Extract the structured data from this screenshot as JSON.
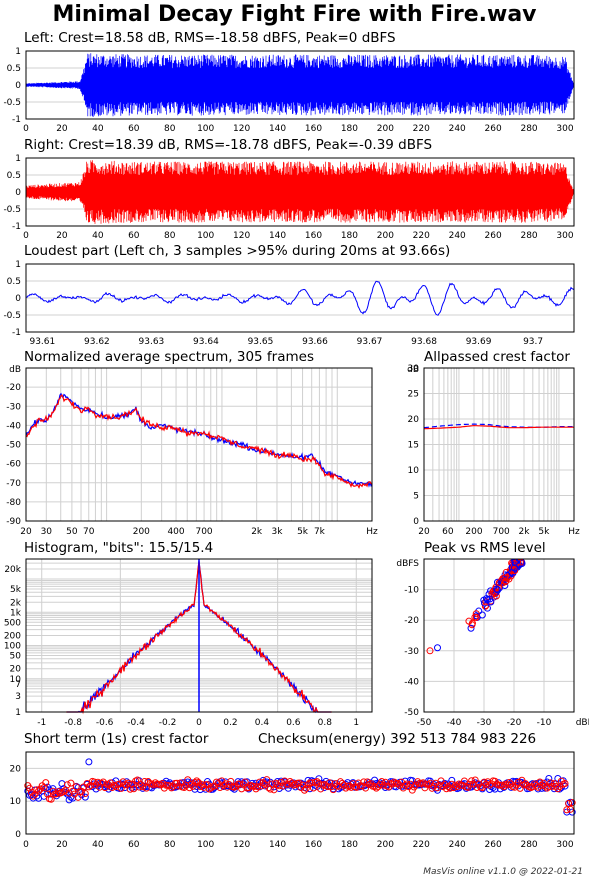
{
  "page": {
    "title": "Minimal Decay Fight Fire with Fire.wav",
    "footer": "MasVis online v1.1.0 @ 2022-01-21"
  },
  "colors": {
    "left": "#0000ff",
    "right": "#ff0000",
    "grid": "#d0d0d0"
  },
  "chart_data": [
    {
      "id": "left-waveform",
      "type": "area",
      "title": "Left: Crest=18.58 dB, RMS=-18.58 dBFS, Peak=0 dBFS",
      "x_ticks": [
        "0",
        "20",
        "40",
        "60",
        "80",
        "100",
        "120",
        "140",
        "160",
        "180",
        "200",
        "220",
        "240",
        "260",
        "280",
        "300"
      ],
      "y_ticks": [
        "1",
        "0.5",
        "0",
        "-0.5",
        "-1"
      ],
      "xlim": [
        0,
        305
      ],
      "ylim": [
        -1,
        1
      ],
      "envelope": {
        "x": [
          0,
          30,
          33,
          34,
          60,
          150,
          250,
          280,
          300,
          305
        ],
        "amplitude": [
          0.05,
          0.12,
          0.7,
          0.95,
          0.9,
          0.9,
          0.9,
          0.9,
          0.85,
          0.02
        ]
      }
    },
    {
      "id": "right-waveform",
      "type": "area",
      "title": "Right: Crest=18.39 dB, RMS=-18.78 dBFS, Peak=-0.39 dBFS",
      "x_ticks": [
        "0",
        "20",
        "40",
        "60",
        "80",
        "100",
        "120",
        "140",
        "160",
        "180",
        "200",
        "220",
        "240",
        "260",
        "280",
        "300"
      ],
      "y_ticks": [
        "1",
        "0.5",
        "0",
        "-0.5",
        "-1"
      ],
      "xlim": [
        0,
        305
      ],
      "ylim": [
        -1,
        1
      ],
      "envelope": {
        "x": [
          0,
          30,
          33,
          34,
          60,
          150,
          250,
          280,
          300,
          305
        ],
        "amplitude": [
          0.2,
          0.3,
          0.75,
          0.95,
          0.9,
          0.9,
          0.9,
          0.9,
          0.85,
          0.02
        ]
      }
    },
    {
      "id": "loudest-part",
      "type": "line",
      "title": "Loudest part (Left ch, 3 samples >95% during 20ms at 93.66s)",
      "x_ticks": [
        "93.61",
        "93.62",
        "93.63",
        "93.64",
        "93.65",
        "93.66",
        "93.67",
        "93.68",
        "93.69",
        "93.7"
      ],
      "y_ticks": [
        "1",
        "0.5",
        "0",
        "-0.5",
        "-1"
      ],
      "xlim": [
        93.607,
        93.7075
      ],
      "ylim": [
        -1,
        1
      ]
    },
    {
      "id": "avg-spectrum",
      "type": "line",
      "title": "Normalized average spectrum, 305 frames",
      "ylabel": "dB",
      "x_ticks": [
        "20",
        "30",
        "50",
        "70",
        "200",
        "400",
        "700",
        "2k",
        "3k",
        "5k",
        "7k",
        "Hz"
      ],
      "x_tick_values": [
        20,
        30,
        50,
        70,
        200,
        400,
        700,
        2000,
        3000,
        5000,
        7000
      ],
      "y_ticks": [
        "-20",
        "-30",
        "-40",
        "-50",
        "-60",
        "-70",
        "-80",
        "-90"
      ],
      "xlim": [
        20,
        20000
      ],
      "ylim": [
        -90,
        -10
      ],
      "series": [
        {
          "x": [
            20,
            25,
            30,
            35,
            40,
            45,
            50,
            60,
            70,
            80,
            100,
            120,
            150,
            180,
            200,
            250,
            300,
            400,
            500,
            700,
            1000,
            1500,
            2000,
            3000,
            4000,
            5000,
            6000,
            7000,
            8000,
            10000,
            12000,
            15000,
            20000
          ],
          "values": [
            -45,
            -37,
            -38,
            -32,
            -24,
            -25,
            -28,
            -31,
            -32,
            -33,
            -36,
            -35,
            -35,
            -31,
            -38,
            -41,
            -40,
            -42,
            -43,
            -45,
            -48,
            -50,
            -53,
            -55,
            -56,
            -57,
            -56,
            -60,
            -65,
            -66,
            -69,
            -70,
            -71
          ]
        },
        {
          "x": [
            20,
            25,
            30,
            35,
            40,
            45,
            50,
            60,
            70,
            80,
            100,
            120,
            150,
            180,
            200,
            250,
            300,
            400,
            500,
            700,
            1000,
            1500,
            2000,
            3000,
            4000,
            5000,
            6000,
            7000,
            8000,
            10000,
            12000,
            15000,
            20000
          ],
          "values": [
            -46,
            -38,
            -37,
            -33,
            -25,
            -26,
            -29,
            -32,
            -31,
            -34,
            -35,
            -36,
            -34,
            -32,
            -37,
            -40,
            -41,
            -41,
            -44,
            -44,
            -47,
            -51,
            -52,
            -56,
            -55,
            -58,
            -57,
            -61,
            -66,
            -67,
            -70,
            -72,
            -70
          ]
        }
      ]
    },
    {
      "id": "allpassed-crest",
      "type": "line",
      "title": "Allpassed crest factor",
      "ylabel": "dB",
      "x_ticks": [
        "20",
        "60",
        "200",
        "700",
        "2k",
        "5k",
        "Hz"
      ],
      "x_tick_values": [
        20,
        60,
        200,
        700,
        2000,
        5000
      ],
      "y_ticks": [
        "30",
        "25",
        "20",
        "15",
        "10",
        "5",
        "0"
      ],
      "xlim": [
        20,
        20000
      ],
      "ylim": [
        0,
        30
      ],
      "series": [
        {
          "x": [
            20,
            40,
            100,
            200,
            400,
            700,
            1000,
            2000,
            5000,
            10000,
            20000
          ],
          "values": [
            18.3,
            18.6,
            18.9,
            19.0,
            18.9,
            18.6,
            18.5,
            18.4,
            18.4,
            18.5,
            18.5
          ]
        },
        {
          "x": [
            20,
            40,
            100,
            200,
            400,
            700,
            1000,
            2000,
            5000,
            10000,
            20000
          ],
          "values": [
            18.1,
            18.2,
            18.4,
            18.7,
            18.6,
            18.4,
            18.3,
            18.3,
            18.4,
            18.4,
            18.4
          ]
        }
      ]
    },
    {
      "id": "histogram",
      "type": "line",
      "title": "Histogram, \"bits\": 15.5/15.4",
      "x_ticks": [
        "-1",
        "-0.8",
        "-0.6",
        "-0.4",
        "-0.2",
        "0",
        "0.2",
        "0.4",
        "0.6",
        "0.8",
        "1"
      ],
      "y_ticks": [
        "20k",
        "5k",
        "2k",
        "1k",
        "500",
        "200",
        "100",
        "50",
        "20",
        "10",
        "7",
        "3",
        "1"
      ],
      "y_tick_values": [
        20000,
        5000,
        2000,
        1000,
        500,
        200,
        100,
        50,
        20,
        10,
        7,
        3,
        1
      ],
      "xlim": [
        -1.1,
        1.1
      ],
      "ylim": [
        1,
        40000
      ]
    },
    {
      "id": "peak-vs-rms",
      "type": "scatter",
      "title": "Peak vs RMS level",
      "ylabel": "dBFS",
      "xlabel": "dBFS",
      "x_ticks": [
        "-50",
        "-40",
        "-30",
        "-20",
        "-10"
      ],
      "y_ticks": [
        "-10",
        "-20",
        "-30",
        "-40",
        "-50"
      ],
      "xlim": [
        -50,
        0
      ],
      "ylim": [
        -50,
        0
      ]
    },
    {
      "id": "short-term-crest",
      "type": "scatter",
      "title": "Short term (1s) crest factor",
      "annotation": "Checksum(energy)   392 513 784 983 226",
      "x_ticks": [
        "0",
        "20",
        "40",
        "60",
        "80",
        "100",
        "120",
        "140",
        "160",
        "180",
        "200",
        "220",
        "240",
        "260",
        "280",
        "300"
      ],
      "y_ticks": [
        "20",
        "10",
        "0"
      ],
      "xlim": [
        0,
        305
      ],
      "ylim": [
        0,
        25
      ]
    }
  ]
}
